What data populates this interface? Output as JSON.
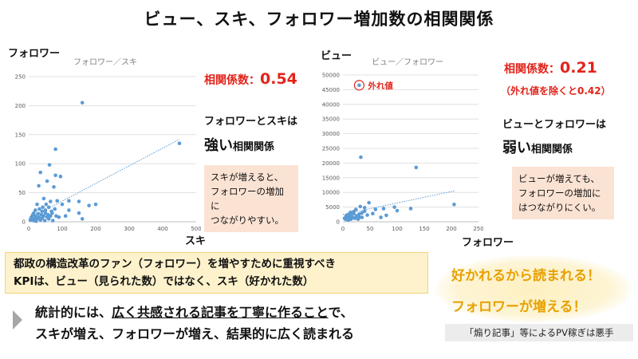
{
  "slide": {
    "title": "ビュー、スキ、フォロワー増加数の相関関係"
  },
  "colors": {
    "point": "#5b9bd5",
    "trend": "#5b9bd5",
    "grid": "#d9d9d9",
    "corr_red": "#e2231a",
    "note_bg": "#fbe3d4",
    "kpi_bg": "#fdf2cc",
    "accent_orange": "#e8a100"
  },
  "left_chart": {
    "y_title": "フォロワー",
    "x_title": "スキ",
    "chart_title": "フォロワー／スキ",
    "corr_label": "相関係数：",
    "corr_value": "0.54",
    "relation_line1": "フォロワーとスキは",
    "relation_strength": "強い",
    "relation_suffix": "相関関係",
    "note": [
      "スキが増えると、",
      "フォロワーの増加に",
      "つながりやすい。"
    ]
  },
  "right_chart": {
    "y_title": "ビュー",
    "x_title": "フォロワー",
    "chart_title": "ビュー／フォロワー",
    "corr_label": "相関係数：",
    "corr_value": "0.21",
    "corr_note": "（外れ値を除くと0.42）",
    "outlier_label": "外れ値",
    "relation_line1": "ビューとフォロワーは",
    "relation_strength": "弱い",
    "relation_suffix": "相関関係",
    "note": [
      "ビューが増えても、",
      "フォロワーの増加に",
      "はつながりにくい。"
    ]
  },
  "kpi": {
    "line1": "都政の構造改革のファン（フォロワー）を増やすために重視すべき",
    "line2": "KPIは、ビュー（見られた数）ではなく、スキ（好かれた数）"
  },
  "statement": {
    "prefix": "統計的には、",
    "emph1": "広く共感される記事を丁寧に作ること",
    "suffix": "で、",
    "line2": "スキが増え、フォロワーが増え、結果的に広く読まれる"
  },
  "callout": {
    "line1": "好かれるから読まれる！",
    "line2": "フォロワーが増える！"
  },
  "warning": "「煽り記事」等によるPV稼ぎは悪手",
  "chart_data": [
    {
      "type": "scatter",
      "title": "フォロワー／スキ",
      "xlabel": "スキ",
      "ylabel": "フォロワー",
      "xlim": [
        0,
        500
      ],
      "ylim": [
        0,
        250
      ],
      "xticks": [
        0,
        100,
        200,
        300,
        400,
        500
      ],
      "yticks": [
        0,
        50,
        100,
        150,
        200,
        250
      ],
      "grid": true,
      "trendline": {
        "x": [
          0,
          450
        ],
        "y": [
          5,
          142
        ]
      },
      "points": [
        [
          5,
          3
        ],
        [
          8,
          8
        ],
        [
          10,
          5
        ],
        [
          12,
          12
        ],
        [
          15,
          2
        ],
        [
          15,
          15
        ],
        [
          18,
          6
        ],
        [
          20,
          10
        ],
        [
          20,
          20
        ],
        [
          22,
          1
        ],
        [
          25,
          5
        ],
        [
          25,
          30
        ],
        [
          28,
          14
        ],
        [
          30,
          62
        ],
        [
          30,
          8
        ],
        [
          32,
          22
        ],
        [
          35,
          85
        ],
        [
          35,
          3
        ],
        [
          38,
          12
        ],
        [
          40,
          18
        ],
        [
          40,
          6
        ],
        [
          42,
          25
        ],
        [
          45,
          10
        ],
        [
          45,
          40
        ],
        [
          48,
          2
        ],
        [
          50,
          15
        ],
        [
          50,
          20
        ],
        [
          52,
          30
        ],
        [
          55,
          8
        ],
        [
          55,
          70
        ],
        [
          58,
          12
        ],
        [
          60,
          5
        ],
        [
          60,
          25
        ],
        [
          62,
          98
        ],
        [
          65,
          35
        ],
        [
          65,
          10
        ],
        [
          68,
          18
        ],
        [
          70,
          15
        ],
        [
          72,
          2
        ],
        [
          75,
          60
        ],
        [
          78,
          22
        ],
        [
          80,
          80
        ],
        [
          80,
          125
        ],
        [
          82,
          10
        ],
        [
          85,
          36
        ],
        [
          90,
          8
        ],
        [
          95,
          78
        ],
        [
          100,
          30
        ],
        [
          110,
          10
        ],
        [
          120,
          20
        ],
        [
          120,
          36
        ],
        [
          150,
          35
        ],
        [
          150,
          15
        ],
        [
          160,
          205
        ],
        [
          160,
          5
        ],
        [
          180,
          28
        ],
        [
          200,
          30
        ],
        [
          450,
          135
        ]
      ]
    },
    {
      "type": "scatter",
      "title": "ビュー／フォロワー",
      "xlabel": "フォロワー",
      "ylabel": "ビュー",
      "xlim": [
        0,
        250
      ],
      "ylim": [
        0,
        50000
      ],
      "xticks": [
        0,
        50,
        100,
        150,
        200,
        250
      ],
      "yticks": [
        0,
        5000,
        10000,
        15000,
        20000,
        25000,
        30000,
        35000,
        40000,
        45000,
        50000
      ],
      "grid": true,
      "trendline": {
        "x": [
          0,
          205
        ],
        "y": [
          2500,
          10500
        ]
      },
      "outlier": [
        30,
        46500
      ],
      "points": [
        [
          3,
          1200
        ],
        [
          5,
          800
        ],
        [
          6,
          2000
        ],
        [
          8,
          1500
        ],
        [
          10,
          600
        ],
        [
          10,
          2500
        ],
        [
          12,
          1800
        ],
        [
          14,
          3200
        ],
        [
          15,
          900
        ],
        [
          15,
          2200
        ],
        [
          18,
          1500
        ],
        [
          20,
          2800
        ],
        [
          20,
          3500
        ],
        [
          22,
          1200
        ],
        [
          24,
          4200
        ],
        [
          25,
          2000
        ],
        [
          28,
          900
        ],
        [
          30,
          1600
        ],
        [
          30,
          2600
        ],
        [
          32,
          5200
        ],
        [
          33,
          22000
        ],
        [
          35,
          3000
        ],
        [
          35,
          1500
        ],
        [
          40,
          3600
        ],
        [
          40,
          4800
        ],
        [
          45,
          2300
        ],
        [
          48,
          6500
        ],
        [
          55,
          2800
        ],
        [
          60,
          4200
        ],
        [
          70,
          1500
        ],
        [
          75,
          4500
        ],
        [
          80,
          2200
        ],
        [
          95,
          5000
        ],
        [
          100,
          3800
        ],
        [
          125,
          4500
        ],
        [
          135,
          18500
        ],
        [
          205,
          5900
        ]
      ]
    }
  ]
}
